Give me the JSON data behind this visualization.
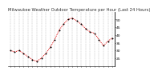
{
  "title": "Milwaukee Weather Outdoor Temperature per Hour (Last 24 Hours)",
  "hours": [
    0,
    1,
    2,
    3,
    4,
    5,
    6,
    7,
    8,
    9,
    10,
    11,
    12,
    13,
    14,
    15,
    16,
    17,
    18,
    19,
    20,
    21,
    22,
    23
  ],
  "temps": [
    30,
    29,
    30,
    28,
    26,
    24,
    23,
    25,
    28,
    32,
    37,
    43,
    47,
    50,
    51,
    49,
    47,
    44,
    42,
    41,
    37,
    33,
    36,
    38
  ],
  "line_color": "#dd0000",
  "marker_color": "#000000",
  "background_color": "#ffffff",
  "ylim": [
    20,
    55
  ],
  "ytick_values": [
    25,
    30,
    35,
    40,
    45,
    50
  ],
  "grid_color": "#999999",
  "title_fontsize": 3.8,
  "tick_fontsize": 3.2,
  "line_width": 0.7,
  "marker_size": 1.0
}
